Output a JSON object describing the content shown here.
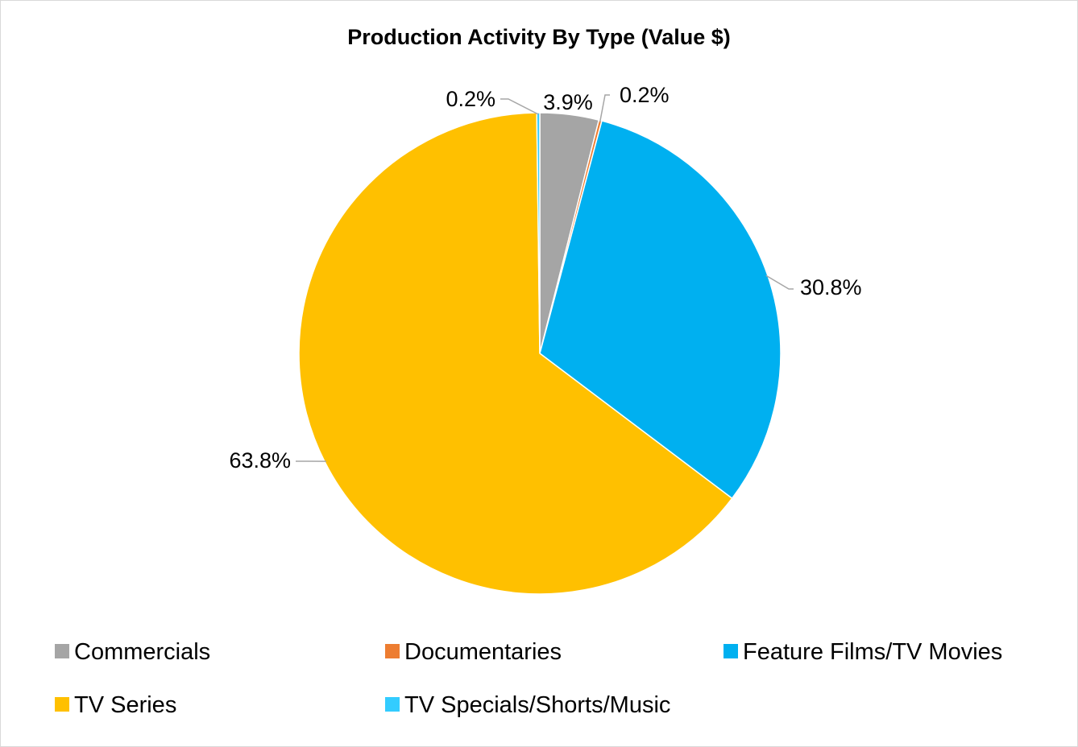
{
  "chart_data": {
    "type": "pie",
    "title": "Production Activity By Type (Value $)",
    "legend_position": "bottom",
    "grid": false,
    "slices": [
      {
        "name": "Commercials",
        "value": 3.9,
        "label": "3.9%",
        "color": "#a5a5a5"
      },
      {
        "name": "Documentaries",
        "value": 0.2,
        "label": "0.2%",
        "color": "#ed7d31"
      },
      {
        "name": "Feature Films/TV Movies",
        "value": 30.8,
        "label": "30.8%",
        "color": "#00b0f0"
      },
      {
        "name": "TV Series",
        "value": 63.8,
        "label": "63.8%",
        "color": "#ffc000"
      },
      {
        "name": "TV Specials/Shorts/Music",
        "value": 0.2,
        "label": "0.2%",
        "color": "#33ccff"
      }
    ]
  }
}
